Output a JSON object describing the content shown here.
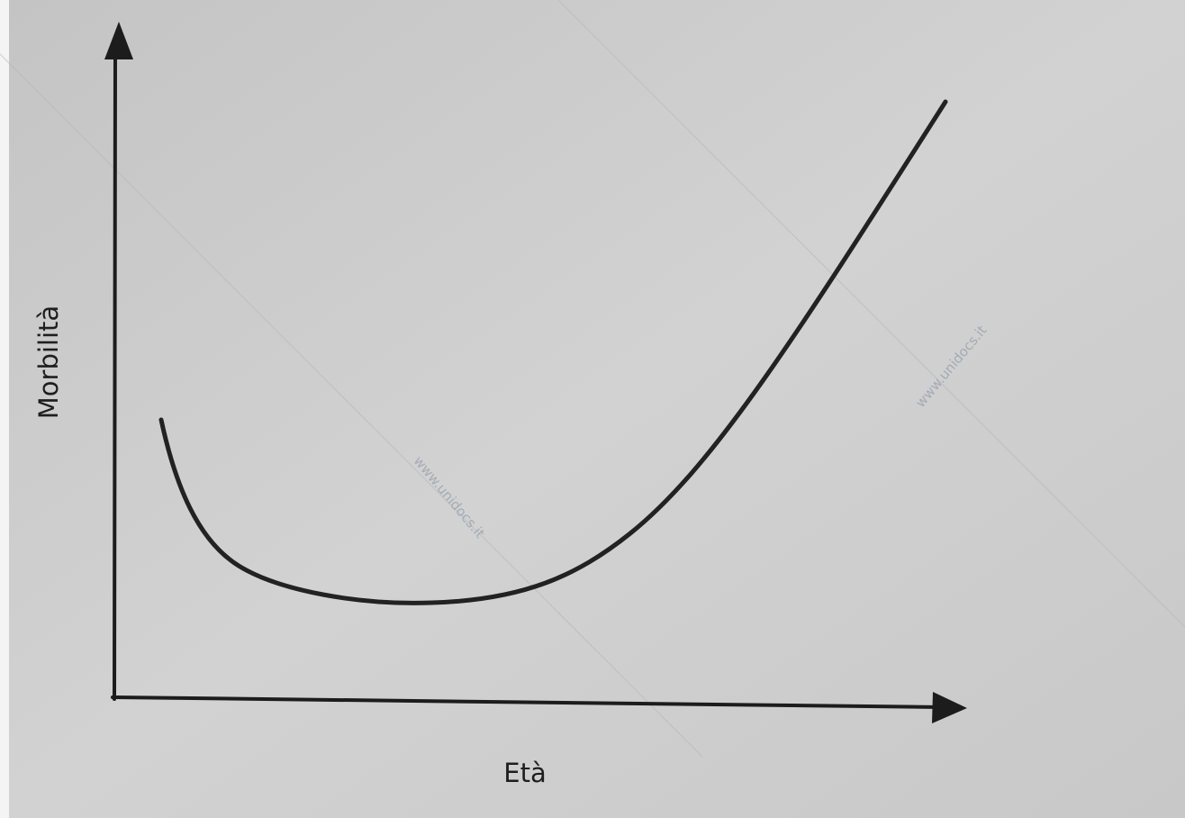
{
  "diagram": {
    "x_axis_label": "Età",
    "y_axis_label": "Morbilità"
  },
  "watermark": "www.unidocs.it"
}
